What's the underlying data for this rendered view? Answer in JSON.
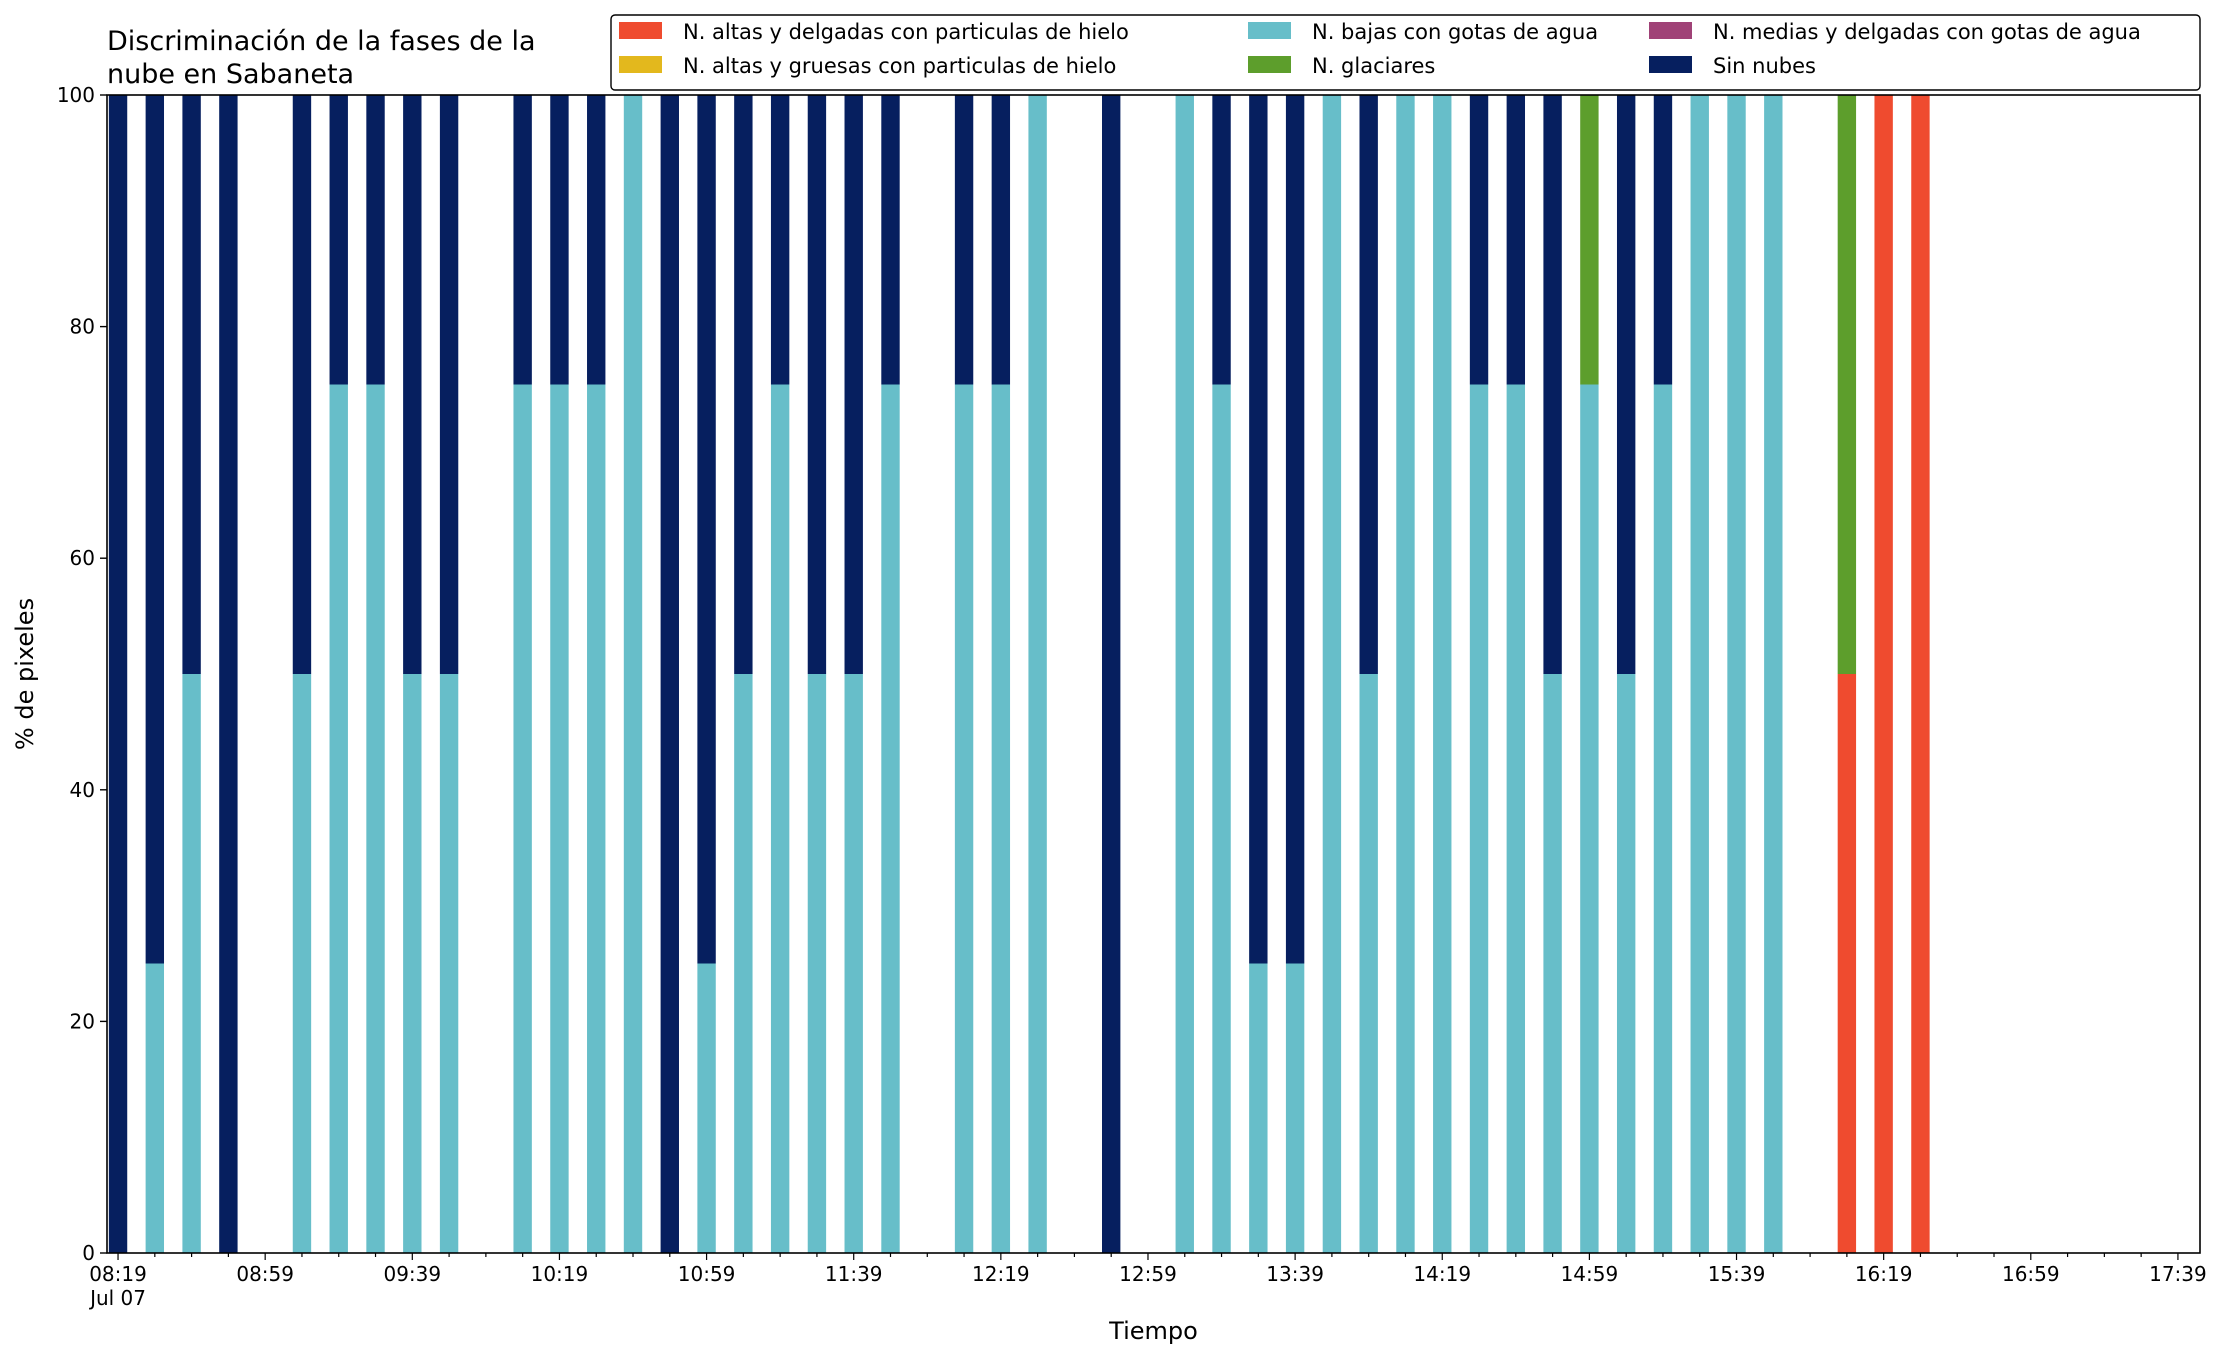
{
  "chart_data": {
    "type": "bar",
    "stacked": true,
    "title": "Discriminación de la fases de la\nnube en Sabaneta",
    "xlabel": "Tiempo",
    "ylabel": "% de pixeles",
    "ylim": [
      0,
      100
    ],
    "xlim_minutes": [
      -3,
      566
    ],
    "bar_width_minutes": 5,
    "x_start": "08:19 Jul 07",
    "yticks": [
      0,
      20,
      40,
      60,
      80,
      100
    ],
    "xtick_labels": [
      {
        "t": 0,
        "label": "08:19",
        "sub": "Jul 07"
      },
      {
        "t": 40,
        "label": "08:59"
      },
      {
        "t": 80,
        "label": "09:39"
      },
      {
        "t": 120,
        "label": "10:19"
      },
      {
        "t": 160,
        "label": "10:59"
      },
      {
        "t": 200,
        "label": "11:39"
      },
      {
        "t": 240,
        "label": "12:19"
      },
      {
        "t": 280,
        "label": "12:59"
      },
      {
        "t": 320,
        "label": "13:39"
      },
      {
        "t": 360,
        "label": "14:19"
      },
      {
        "t": 400,
        "label": "14:59"
      },
      {
        "t": 440,
        "label": "15:39"
      },
      {
        "t": 480,
        "label": "16:19"
      },
      {
        "t": 520,
        "label": "16:59"
      },
      {
        "t": 560,
        "label": "17:39"
      }
    ],
    "legend_position": "top-right",
    "series": [
      {
        "name": "N. altas y delgadas con particulas de hielo",
        "color": "#ef4b2f"
      },
      {
        "name": "N. altas y gruesas con particulas de hielo",
        "color": "#e3b81d"
      },
      {
        "name": "N. bajas con gotas de agua",
        "color": "#67bec9"
      },
      {
        "name": "N. glaciares",
        "color": "#5d9e2c"
      },
      {
        "name": "N. medias y delgadas con gotas de agua",
        "color": "#a04277"
      },
      {
        "name": "Sin nubes",
        "color": "#061f5f"
      }
    ],
    "bars": [
      {
        "t": 0,
        "values": [
          0,
          0,
          0,
          0,
          0,
          100
        ]
      },
      {
        "t": 10,
        "values": [
          0,
          0,
          25,
          0,
          0,
          75
        ]
      },
      {
        "t": 20,
        "values": [
          0,
          0,
          50,
          0,
          0,
          50
        ]
      },
      {
        "t": 30,
        "values": [
          0,
          0,
          0,
          0,
          0,
          100
        ]
      },
      {
        "t": 50,
        "values": [
          0,
          0,
          50,
          0,
          0,
          50
        ]
      },
      {
        "t": 60,
        "values": [
          0,
          0,
          75,
          0,
          0,
          25
        ]
      },
      {
        "t": 70,
        "values": [
          0,
          0,
          75,
          0,
          0,
          25
        ]
      },
      {
        "t": 80,
        "values": [
          0,
          0,
          50,
          0,
          0,
          50
        ]
      },
      {
        "t": 90,
        "values": [
          0,
          0,
          50,
          0,
          0,
          50
        ]
      },
      {
        "t": 110,
        "values": [
          0,
          0,
          75,
          0,
          0,
          25
        ]
      },
      {
        "t": 120,
        "values": [
          0,
          0,
          75,
          0,
          0,
          25
        ]
      },
      {
        "t": 130,
        "values": [
          0,
          0,
          75,
          0,
          0,
          25
        ]
      },
      {
        "t": 140,
        "values": [
          0,
          0,
          100,
          0,
          0,
          0
        ]
      },
      {
        "t": 150,
        "values": [
          0,
          0,
          0,
          0,
          0,
          100
        ]
      },
      {
        "t": 160,
        "values": [
          0,
          0,
          25,
          0,
          0,
          75
        ]
      },
      {
        "t": 170,
        "values": [
          0,
          0,
          50,
          0,
          0,
          50
        ]
      },
      {
        "t": 180,
        "values": [
          0,
          0,
          75,
          0,
          0,
          25
        ]
      },
      {
        "t": 190,
        "values": [
          0,
          0,
          50,
          0,
          0,
          50
        ]
      },
      {
        "t": 200,
        "values": [
          0,
          0,
          50,
          0,
          0,
          50
        ]
      },
      {
        "t": 210,
        "values": [
          0,
          0,
          75,
          0,
          0,
          25
        ]
      },
      {
        "t": 230,
        "values": [
          0,
          0,
          75,
          0,
          0,
          25
        ]
      },
      {
        "t": 240,
        "values": [
          0,
          0,
          75,
          0,
          0,
          25
        ]
      },
      {
        "t": 250,
        "values": [
          0,
          0,
          100,
          0,
          0,
          0
        ]
      },
      {
        "t": 270,
        "values": [
          0,
          0,
          0,
          0,
          0,
          100
        ]
      },
      {
        "t": 290,
        "values": [
          0,
          0,
          100,
          0,
          0,
          0
        ]
      },
      {
        "t": 300,
        "values": [
          0,
          0,
          75,
          0,
          0,
          25
        ]
      },
      {
        "t": 310,
        "values": [
          0,
          0,
          25,
          0,
          0,
          75
        ]
      },
      {
        "t": 320,
        "values": [
          0,
          0,
          25,
          0,
          0,
          75
        ]
      },
      {
        "t": 330,
        "values": [
          0,
          0,
          100,
          0,
          0,
          0
        ]
      },
      {
        "t": 340,
        "values": [
          0,
          0,
          50,
          0,
          0,
          50
        ]
      },
      {
        "t": 350,
        "values": [
          0,
          0,
          100,
          0,
          0,
          0
        ]
      },
      {
        "t": 360,
        "values": [
          0,
          0,
          100,
          0,
          0,
          0
        ]
      },
      {
        "t": 370,
        "values": [
          0,
          0,
          75,
          0,
          0,
          25
        ]
      },
      {
        "t": 380,
        "values": [
          0,
          0,
          75,
          0,
          0,
          25
        ]
      },
      {
        "t": 390,
        "values": [
          0,
          0,
          50,
          0,
          0,
          50
        ]
      },
      {
        "t": 400,
        "values": [
          0,
          0,
          75,
          25,
          0,
          0
        ]
      },
      {
        "t": 410,
        "values": [
          0,
          0,
          50,
          0,
          0,
          50
        ]
      },
      {
        "t": 420,
        "values": [
          0,
          0,
          75,
          0,
          0,
          25
        ]
      },
      {
        "t": 430,
        "values": [
          0,
          0,
          100,
          0,
          0,
          0
        ]
      },
      {
        "t": 440,
        "values": [
          0,
          0,
          100,
          0,
          0,
          0
        ]
      },
      {
        "t": 450,
        "values": [
          0,
          0,
          100,
          0,
          0,
          0
        ]
      },
      {
        "t": 470,
        "values": [
          50,
          0,
          0,
          50,
          0,
          0
        ]
      },
      {
        "t": 480,
        "values": [
          100,
          0,
          0,
          0,
          0,
          0
        ]
      },
      {
        "t": 490,
        "values": [
          100,
          0,
          0,
          0,
          0,
          0
        ]
      }
    ]
  }
}
